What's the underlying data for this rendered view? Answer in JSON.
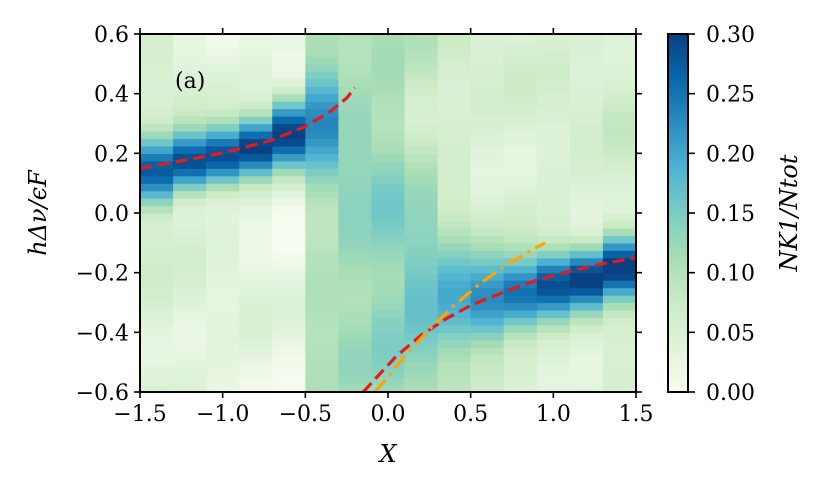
{
  "chart_data": {
    "type": "heatmap",
    "panel_label": "(a)",
    "xlabel": "X",
    "ylabel": "hΔν/ϵF",
    "xlim": [
      -1.5,
      1.5
    ],
    "ylim": [
      -0.6,
      0.6
    ],
    "x_ticks": [
      "−1.5",
      "−1.0",
      "−0.5",
      "0.0",
      "0.5",
      "1.0",
      "1.5"
    ],
    "y_ticks": [
      "−0.6",
      "−0.4",
      "−0.2",
      "0.0",
      "0.2",
      "0.4",
      "0.6"
    ],
    "x_tick_values": [
      -1.5,
      -1.0,
      -0.5,
      0.0,
      0.5,
      1.0,
      1.5
    ],
    "y_tick_values": [
      -0.6,
      -0.4,
      -0.2,
      0.0,
      0.2,
      0.4,
      0.6
    ],
    "colorbar": {
      "label": "NK1/Ntot",
      "range": [
        0.0,
        0.3
      ],
      "ticks": [
        "0.00",
        "0.05",
        "0.10",
        "0.15",
        "0.20",
        "0.25",
        "0.30"
      ],
      "tick_values": [
        0.0,
        0.05,
        0.1,
        0.15,
        0.2,
        0.25,
        0.3
      ],
      "colormap": "GnBu"
    },
    "columns_x": [
      -1.4,
      -1.2,
      -1.0,
      -0.8,
      -0.6,
      -0.4,
      -0.2,
      0.0,
      0.2,
      0.4,
      0.6,
      0.8,
      1.0,
      1.2,
      1.4
    ],
    "column_width": 0.2,
    "columns": [
      {
        "center": 0.14,
        "width": 0.11,
        "peak": 0.28,
        "bg": 0.05
      },
      {
        "center": 0.17,
        "width": 0.1,
        "peak": 0.3,
        "bg": 0.04
      },
      {
        "center": 0.19,
        "width": 0.1,
        "peak": 0.3,
        "bg": 0.03
      },
      {
        "center": 0.22,
        "width": 0.1,
        "peak": 0.3,
        "bg": 0.03
      },
      {
        "center": 0.27,
        "width": 0.12,
        "peak": 0.29,
        "bg": 0.02
      },
      {
        "center": 0.33,
        "width": 0.18,
        "peak": 0.22,
        "bg": 0.1
      },
      {
        "center": 0.05,
        "width": 0.5,
        "peak": 0.13,
        "bg": 0.1
      },
      {
        "center": -0.15,
        "width": 0.5,
        "peak": 0.14,
        "bg": 0.1
      },
      {
        "center": -0.27,
        "width": 0.3,
        "peak": 0.17,
        "bg": 0.08
      },
      {
        "center": -0.3,
        "width": 0.2,
        "peak": 0.2,
        "bg": 0.06
      },
      {
        "center": -0.3,
        "width": 0.15,
        "peak": 0.24,
        "bg": 0.05
      },
      {
        "center": -0.27,
        "width": 0.12,
        "peak": 0.26,
        "bg": 0.05
      },
      {
        "center": -0.24,
        "width": 0.11,
        "peak": 0.28,
        "bg": 0.05
      },
      {
        "center": -0.22,
        "width": 0.1,
        "peak": 0.29,
        "bg": 0.05
      },
      {
        "center": -0.18,
        "width": 0.1,
        "peak": 0.3,
        "bg": 0.06
      }
    ],
    "series": [
      {
        "style": "dashed",
        "color": "#e41a1c",
        "x": [
          -1.5,
          -1.3,
          -1.1,
          -0.9,
          -0.7,
          -0.5,
          -0.35,
          -0.25,
          -0.2
        ],
        "y": [
          0.15,
          0.17,
          0.19,
          0.215,
          0.245,
          0.29,
          0.34,
          0.385,
          0.42
        ]
      },
      {
        "style": "dashed",
        "color": "#e41a1c",
        "x": [
          -0.15,
          -0.05,
          0.05,
          0.2,
          0.35,
          0.5,
          0.7,
          0.9,
          1.1,
          1.3,
          1.5
        ],
        "y": [
          -0.6,
          -0.54,
          -0.48,
          -0.41,
          -0.355,
          -0.31,
          -0.265,
          -0.225,
          -0.195,
          -0.17,
          -0.15
        ]
      },
      {
        "style": "dashdot",
        "color": "#ffa500",
        "x": [
          -0.08,
          0.0,
          0.1,
          0.25,
          0.4,
          0.55,
          0.7,
          0.85,
          0.95
        ],
        "y": [
          -0.6,
          -0.55,
          -0.48,
          -0.39,
          -0.31,
          -0.24,
          -0.18,
          -0.13,
          -0.1
        ]
      }
    ]
  }
}
